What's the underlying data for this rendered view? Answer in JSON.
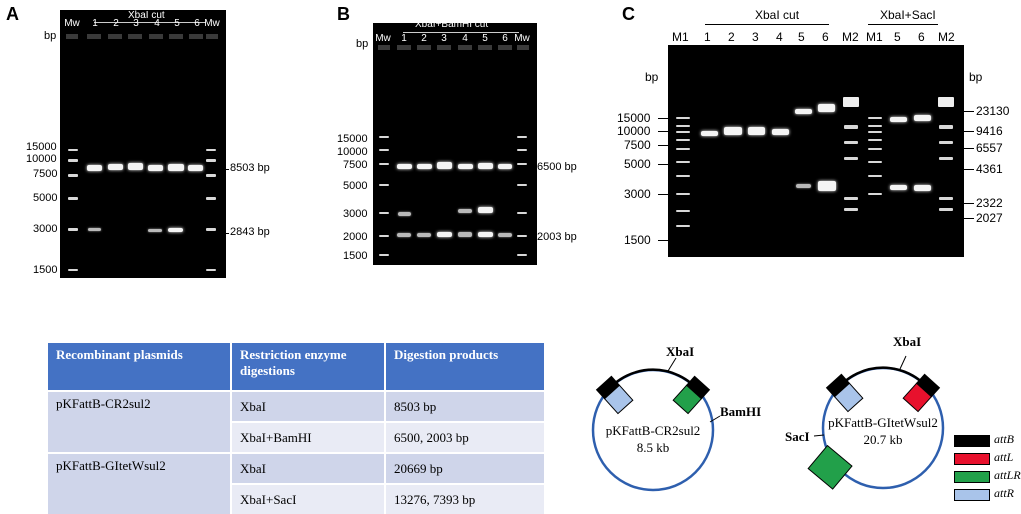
{
  "panels": {
    "A": {
      "letter": "A",
      "bp_unit": "bp",
      "header": "XbaI cut",
      "lanes": [
        "Mw",
        "1",
        "2",
        "3",
        "4",
        "5",
        "6",
        "Mw"
      ],
      "ladder_labels": [
        "15000",
        "10000",
        "7500",
        "5000",
        "3000",
        "1500"
      ],
      "band_labels": [
        "8503 bp",
        "2843 bp"
      ]
    },
    "B": {
      "letter": "B",
      "bp_unit": "bp",
      "header": "XbaI+BamHI cut",
      "lanes": [
        "Mw",
        "1",
        "2",
        "3",
        "4",
        "5",
        "6",
        "Mw"
      ],
      "ladder_labels": [
        "15000",
        "10000",
        "7500",
        "5000",
        "3000",
        "2000",
        "1500"
      ],
      "band_labels": [
        "6500 bp",
        "2003 bp"
      ]
    },
    "C": {
      "letter": "C",
      "bp_unit_left": "bp",
      "bp_unit_right": "bp",
      "header_xba": "XbaI cut",
      "header_xbasac": "XbaI+SacI",
      "lanes": [
        "M1",
        "1",
        "2",
        "3",
        "4",
        "5",
        "6",
        "M2",
        "M1",
        "5",
        "6",
        "M2"
      ],
      "ladder_left": [
        "15000",
        "10000",
        "7500",
        "5000",
        "3000",
        "1500"
      ],
      "ladder_right": [
        "23130",
        "9416",
        "6557",
        "4361",
        "2322",
        "2027"
      ]
    }
  },
  "table": {
    "headers": [
      "Recombinant plasmids",
      "Restriction enzyme digestions",
      "Digestion products"
    ],
    "rows": [
      {
        "plasmid": "pKFattB-CR2sul2",
        "digest": "XbaI",
        "products": "8503 bp"
      },
      {
        "plasmid": "",
        "digest": "XbaI+BamHI",
        "products": "6500, 2003 bp"
      },
      {
        "plasmid": "pKFattB-GItetWsul2",
        "digest": "XbaI",
        "products": "20669 bp"
      },
      {
        "plasmid": "",
        "digest": "XbaI+SacI",
        "products": "13276, 7393 bp"
      }
    ]
  },
  "maps": {
    "map1": {
      "name": "pKFattB-CR2sul2",
      "size": "8.5 kb",
      "site_top": "XbaI",
      "site_right": "BamHI"
    },
    "map2": {
      "name": "pKFattB-GItetWsul2",
      "size": "20.7 kb",
      "site_top": "XbaI",
      "site_left": "SacI"
    }
  },
  "legend": [
    {
      "label": "attB",
      "color": "#000000"
    },
    {
      "label": "attL",
      "color": "#e8112d"
    },
    {
      "label": "attLR",
      "color": "#22a04a"
    },
    {
      "label": "attR",
      "color": "#a9c4ea"
    }
  ]
}
